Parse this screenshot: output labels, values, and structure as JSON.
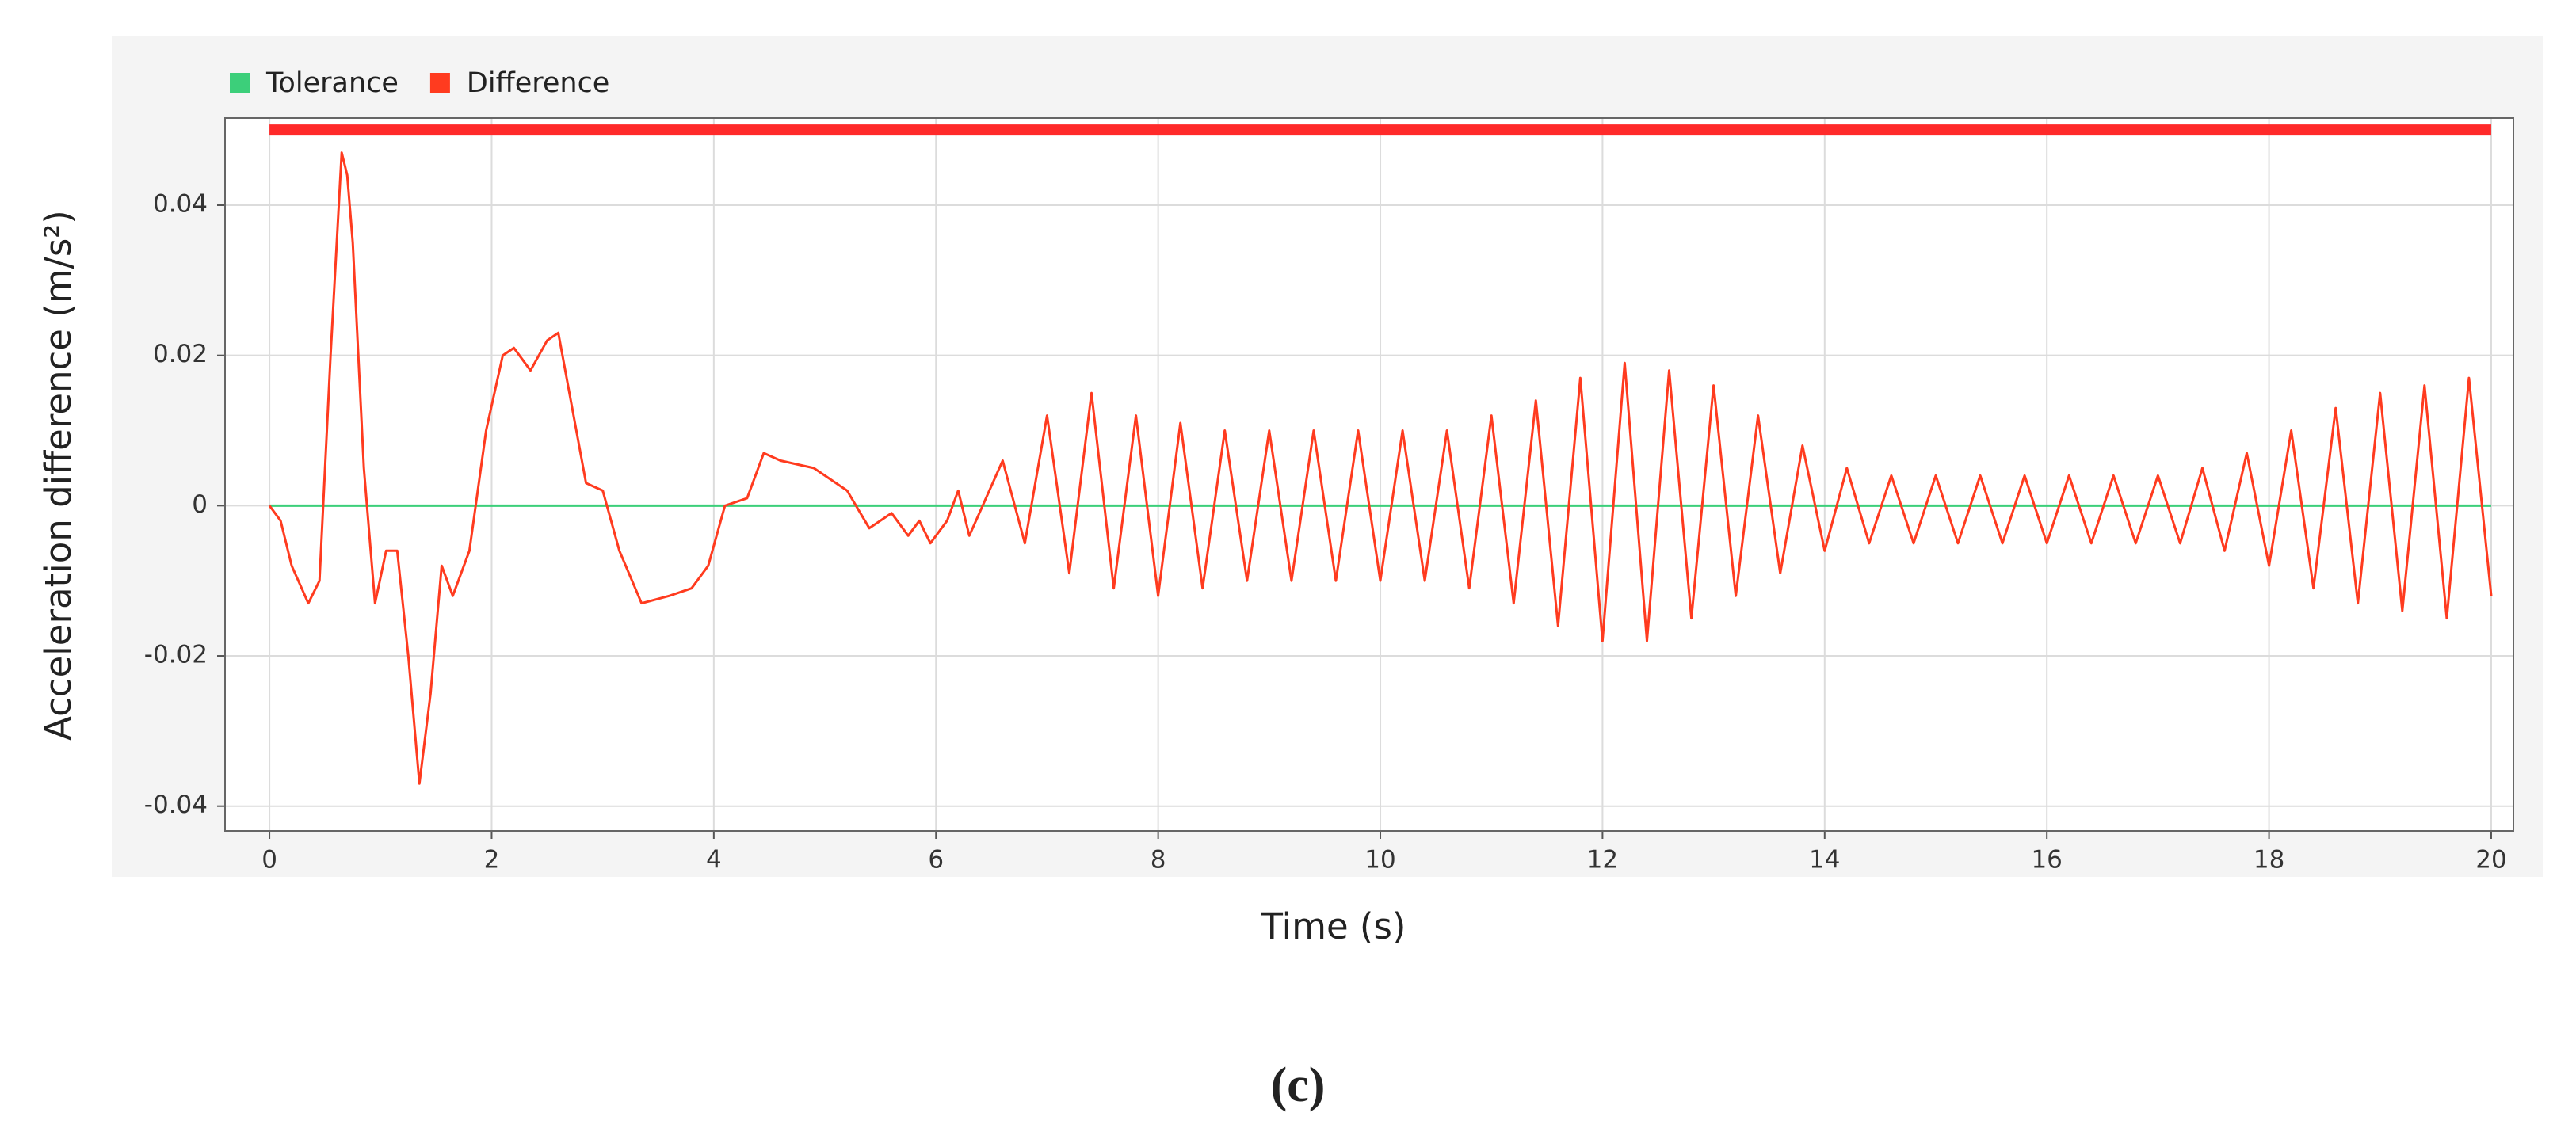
{
  "chart_data": {
    "type": "line",
    "y_label": "Acceleration difference (m/s²)",
    "x_label": "Time (s)",
    "caption": "(c)",
    "xlim": [
      -0.4,
      20.2
    ],
    "ylim": [
      -0.0433,
      0.0516
    ],
    "xticks": [
      0,
      2,
      4,
      6,
      8,
      10,
      12,
      14,
      16,
      18,
      20
    ],
    "yticks": [
      -0.04,
      -0.02,
      0,
      0.02,
      0.04
    ],
    "grid": true,
    "legend": "top-left",
    "reference_lines": [
      {
        "y": 0.05,
        "x": [
          0,
          20
        ],
        "color": "#ff2a2a"
      }
    ],
    "series": [
      {
        "name": "Tolerance",
        "color": "#3ccf7a",
        "x": [
          0,
          20
        ],
        "values": [
          0,
          0
        ]
      },
      {
        "name": "Difference",
        "color": "#ff3b1f",
        "x": [
          0,
          0.1,
          0.2,
          0.35,
          0.45,
          0.55,
          0.65,
          0.7,
          0.75,
          0.85,
          0.95,
          1.05,
          1.15,
          1.25,
          1.35,
          1.45,
          1.55,
          1.65,
          1.8,
          1.95,
          2.1,
          2.2,
          2.35,
          2.5,
          2.6,
          2.7,
          2.85,
          3.0,
          3.15,
          3.35,
          3.6,
          3.8,
          3.95,
          4.1,
          4.3,
          4.45,
          4.6,
          4.9,
          5.2,
          5.4,
          5.6,
          5.75,
          5.85,
          5.95,
          6.1,
          6.2,
          6.3,
          6.6,
          6.8,
          7.0,
          7.2,
          7.4,
          7.6,
          7.8,
          8.0,
          8.2,
          8.4,
          8.6,
          8.8,
          9.0,
          9.2,
          9.4,
          9.6,
          9.8,
          10.0,
          10.2,
          10.4,
          10.6,
          10.8,
          11.0,
          11.2,
          11.4,
          11.6,
          11.8,
          12.0,
          12.2,
          12.4,
          12.6,
          12.8,
          13.0,
          13.2,
          13.4,
          13.6,
          13.8,
          14.0,
          14.2,
          14.4,
          14.6,
          14.8,
          15.0,
          15.2,
          15.4,
          15.6,
          15.8,
          16.0,
          16.2,
          16.4,
          16.6,
          16.8,
          17.0,
          17.2,
          17.4,
          17.6,
          17.8,
          18.0,
          18.2,
          18.4,
          18.6,
          18.8,
          19.0,
          19.2,
          19.4,
          19.6,
          19.8,
          20.0
        ],
        "values": [
          0,
          -0.002,
          -0.008,
          -0.013,
          -0.01,
          0.02,
          0.047,
          0.044,
          0.035,
          0.005,
          -0.013,
          -0.006,
          -0.006,
          -0.02,
          -0.037,
          -0.025,
          -0.008,
          -0.012,
          -0.006,
          0.01,
          0.02,
          0.021,
          0.018,
          0.022,
          0.023,
          0.015,
          0.003,
          0.002,
          -0.006,
          -0.013,
          -0.012,
          -0.011,
          -0.008,
          0.0,
          0.001,
          0.007,
          0.006,
          0.005,
          0.002,
          -0.003,
          -0.001,
          -0.004,
          -0.002,
          -0.005,
          -0.002,
          0.002,
          -0.004,
          0.006,
          -0.005,
          0.012,
          -0.009,
          0.015,
          -0.011,
          0.012,
          -0.012,
          0.011,
          -0.011,
          0.01,
          -0.01,
          0.01,
          -0.01,
          0.01,
          -0.01,
          0.01,
          -0.01,
          0.01,
          -0.01,
          0.01,
          -0.011,
          0.012,
          -0.013,
          0.014,
          -0.016,
          0.017,
          -0.018,
          0.019,
          -0.018,
          0.018,
          -0.015,
          0.016,
          -0.012,
          0.012,
          -0.009,
          0.008,
          -0.006,
          0.005,
          -0.005,
          0.004,
          -0.005,
          0.004,
          -0.005,
          0.004,
          -0.005,
          0.004,
          -0.005,
          0.004,
          -0.005,
          0.004,
          -0.005,
          0.004,
          -0.005,
          0.005,
          -0.006,
          0.007,
          -0.008,
          0.01,
          -0.011,
          0.013,
          -0.013,
          0.015,
          -0.014,
          0.016,
          -0.015,
          0.017,
          -0.012
        ]
      }
    ]
  }
}
